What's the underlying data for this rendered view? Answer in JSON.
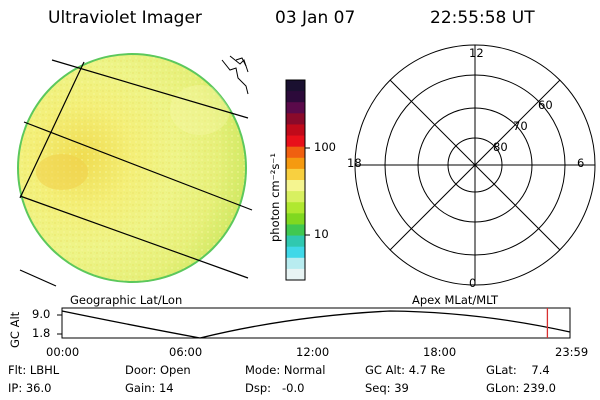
{
  "header": {
    "title": "Ultraviolet Imager",
    "date": "03 Jan 07",
    "time": "22:55:58 UT"
  },
  "colorbar": {
    "unit_label": "photon cm⁻²s⁻¹",
    "tick_labels": [
      "100",
      "10"
    ],
    "colors": [
      "#1a1030",
      "#2c0a3a",
      "#5a0a4a",
      "#8a0a2a",
      "#c00a1a",
      "#e8101a",
      "#f06010",
      "#f59a10",
      "#f8d040",
      "#f5f590",
      "#d8f060",
      "#b0e830",
      "#80d820",
      "#40c850",
      "#30c8b0",
      "#40d8e8",
      "#b8ecf0",
      "#e8f4f4"
    ]
  },
  "dial": {
    "mlt_labels": {
      "top": "12",
      "left": "18",
      "right": "6",
      "bottom": "0"
    },
    "lat_labels": [
      "60",
      "70",
      "80"
    ]
  },
  "timeline": {
    "left_label": "Geographic Lat/Lon",
    "right_label": "Apex MLat/MLT",
    "y_axis_title": "GC Alt",
    "y_ticks": [
      "9.0",
      "1.8"
    ],
    "x_ticks": [
      "00:00",
      "06:00",
      "12:00",
      "18:00",
      "23:59"
    ],
    "marker_time": "22:55",
    "marker_color": "#d83030"
  },
  "info": {
    "flt": "Flt: LBHL",
    "ip": "IP: 36.0",
    "door": "Door: Open",
    "gain": "Gain: 14",
    "mode": "Mode: Normal",
    "dsp": "Dsp:   -0.0",
    "gc_alt": "GC Alt: 4.7 Re",
    "seq": "Seq: 39",
    "glat": "GLat:    7.4",
    "glon": "GLon: 239.0"
  }
}
